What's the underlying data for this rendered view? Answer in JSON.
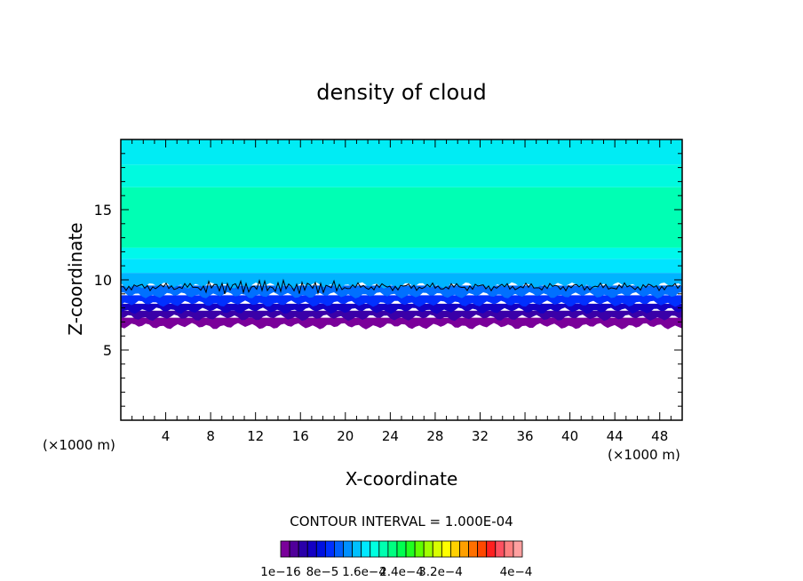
{
  "chart_data": {
    "type": "heatmap",
    "title": "density of cloud",
    "xlabel": "X-coordinate",
    "ylabel": "Z-coordinate",
    "x_unit_left": "(×1000 m)",
    "x_unit_right": "(×1000 m)",
    "x_ticks": [
      4,
      8,
      12,
      16,
      20,
      24,
      28,
      32,
      36,
      40,
      44,
      48
    ],
    "y_ticks": [
      5,
      10,
      15
    ],
    "xlim": [
      0,
      50
    ],
    "ylim": [
      0,
      20
    ],
    "contour_interval_text": "CONTOUR INTERVAL = 1.000E-04",
    "colorbar": {
      "colors": [
        "#7a009a",
        "#50009a",
        "#2a00aa",
        "#1400c4",
        "#0010e0",
        "#0030ff",
        "#0060ff",
        "#0090ff",
        "#00c0ff",
        "#00e8ff",
        "#00ffe0",
        "#00ffb0",
        "#00ff80",
        "#00ff50",
        "#20ff20",
        "#60ff00",
        "#a0ff00",
        "#d8ff00",
        "#ffff00",
        "#ffd000",
        "#ffa000",
        "#ff7000",
        "#ff4800",
        "#ff2020",
        "#ff5060",
        "#ff8080",
        "#ffa0a0"
      ],
      "labels": [
        "1e−16",
        "8e−5",
        "1.6e−4",
        "2.4e−4",
        "3.2e−4",
        "4e−4"
      ]
    },
    "bands": [
      {
        "z_min": 6.7,
        "z_max": 7.3,
        "color": "#7a009a"
      },
      {
        "z_min": 7.3,
        "z_max": 7.8,
        "color": "#3a00a8"
      },
      {
        "z_min": 7.8,
        "z_max": 8.3,
        "color": "#1400c4"
      },
      {
        "z_min": 8.3,
        "z_max": 8.9,
        "color": "#0030ff"
      },
      {
        "z_min": 8.9,
        "z_max": 9.6,
        "color": "#0070ff"
      },
      {
        "z_min": 9.6,
        "z_max": 10.5,
        "color": "#00b4ff"
      },
      {
        "z_min": 10.5,
        "z_max": 11.5,
        "color": "#00e4ff"
      },
      {
        "z_min": 11.5,
        "z_max": 12.3,
        "color": "#00f8ec"
      },
      {
        "z_min": 12.3,
        "z_max": 16.6,
        "color": "#00ffb4"
      },
      {
        "z_min": 16.6,
        "z_max": 18.2,
        "color": "#00fadf"
      },
      {
        "z_min": 18.2,
        "z_max": 20.0,
        "color": "#00ecf4"
      }
    ],
    "contour_line_z": 9.5,
    "grid": false
  }
}
